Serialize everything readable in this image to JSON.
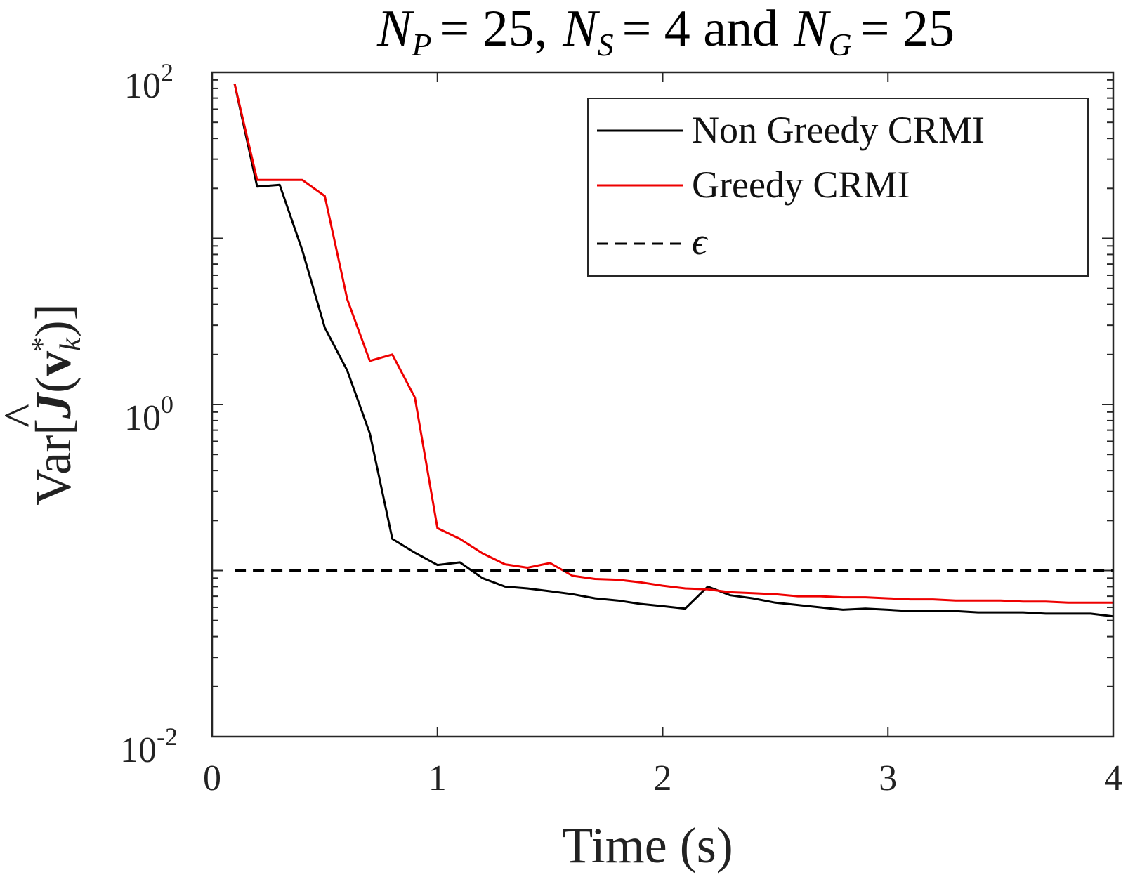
{
  "chart_data": {
    "type": "line",
    "title": {
      "np_sym": "N",
      "np_sub": "P",
      "np_val": "= 25,",
      "ns_sym": "N",
      "ns_sub": "S",
      "ns_val": "= 4 and",
      "ng_sym": "N",
      "ng_sub": "G",
      "ng_val": "= 25"
    },
    "xlabel": "Time (s)",
    "ylabel": {
      "prefix": "Var[",
      "hat": "^",
      "j_sym": "J",
      "open": "(",
      "v_sym": "v",
      "sub": "k",
      "sup": "*",
      "close": ")]"
    },
    "xlim": [
      0,
      4
    ],
    "ylim": [
      0.01,
      100
    ],
    "yscale": "log",
    "xticks": [
      {
        "value": 0,
        "label": "0"
      },
      {
        "value": 1,
        "label": "1"
      },
      {
        "value": 2,
        "label": "2"
      },
      {
        "value": 3,
        "label": "3"
      },
      {
        "value": 4,
        "label": "4"
      }
    ],
    "yticks": [
      {
        "value": 0.01,
        "base": "10",
        "exp": "-2"
      },
      {
        "value": 1,
        "base": "10",
        "exp": "0"
      },
      {
        "value": 100,
        "base": "10",
        "exp": "2"
      }
    ],
    "grid": false,
    "legend_position": "top-right",
    "series": [
      {
        "name": "Non Greedy CRMI",
        "color": "#000000",
        "dash": "solid",
        "x": [
          0.1,
          0.2,
          0.3,
          0.4,
          0.5,
          0.6,
          0.7,
          0.8,
          0.9,
          1.0,
          1.1,
          1.2,
          1.3,
          1.4,
          1.5,
          1.6,
          1.7,
          1.8,
          1.9,
          2.0,
          2.1,
          2.2,
          2.3,
          2.4,
          2.5,
          2.6,
          2.7,
          2.8,
          2.9,
          3.0,
          3.1,
          3.2,
          3.3,
          3.4,
          3.5,
          3.6,
          3.7,
          3.8,
          3.9,
          4.0
        ],
        "y": [
          85,
          20.5,
          21,
          8.5,
          2.9,
          1.6,
          0.67,
          0.155,
          0.128,
          0.108,
          0.112,
          0.09,
          0.08,
          0.078,
          0.075,
          0.072,
          0.068,
          0.066,
          0.063,
          0.061,
          0.059,
          0.08,
          0.071,
          0.068,
          0.064,
          0.062,
          0.06,
          0.058,
          0.059,
          0.058,
          0.057,
          0.057,
          0.057,
          0.056,
          0.056,
          0.056,
          0.055,
          0.055,
          0.055,
          0.053
        ]
      },
      {
        "name": "Greedy CRMI",
        "color": "#ee0000",
        "dash": "solid",
        "x": [
          0.1,
          0.2,
          0.3,
          0.4,
          0.5,
          0.6,
          0.7,
          0.8,
          0.9,
          1.0,
          1.1,
          1.2,
          1.3,
          1.4,
          1.5,
          1.6,
          1.7,
          1.8,
          1.9,
          2.0,
          2.1,
          2.2,
          2.3,
          2.4,
          2.5,
          2.6,
          2.7,
          2.8,
          2.9,
          3.0,
          3.1,
          3.2,
          3.3,
          3.4,
          3.5,
          3.6,
          3.7,
          3.8,
          3.9,
          4.0
        ],
        "y": [
          85,
          22.5,
          22.5,
          22.5,
          18,
          4.3,
          1.83,
          2.0,
          1.1,
          0.18,
          0.155,
          0.127,
          0.109,
          0.104,
          0.111,
          0.093,
          0.089,
          0.088,
          0.085,
          0.081,
          0.078,
          0.077,
          0.074,
          0.073,
          0.072,
          0.07,
          0.07,
          0.069,
          0.069,
          0.068,
          0.067,
          0.067,
          0.066,
          0.066,
          0.066,
          0.065,
          0.065,
          0.064,
          0.064,
          0.064
        ]
      },
      {
        "name": "ϵ",
        "color": "#000000",
        "dash": "dashed",
        "x": [
          0.1,
          4.0
        ],
        "y": [
          0.1,
          0.1
        ]
      }
    ]
  }
}
